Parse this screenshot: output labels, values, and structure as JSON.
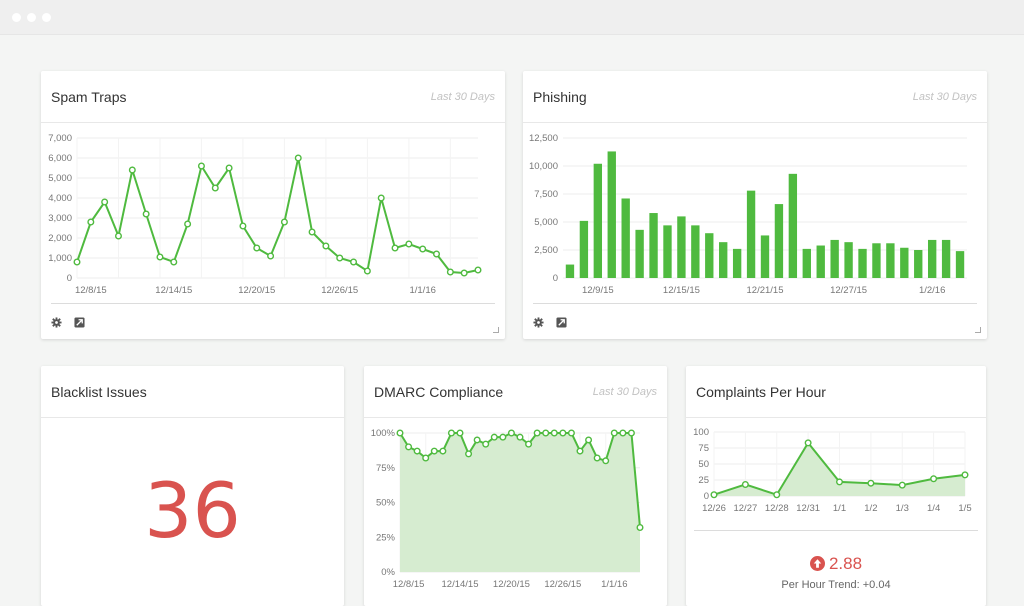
{
  "window": {
    "controls": [
      "close",
      "minimize",
      "maximize"
    ]
  },
  "colors": {
    "accent": "#4fba3f",
    "area": "#d6ecd0",
    "alert": "#d9534f",
    "grid": "#eeeeee",
    "text": "#333333",
    "muted": "#c2c2c2"
  },
  "panels": {
    "spam_traps": {
      "title": "Spam Traps",
      "range": "Last 30 Days",
      "settings_icon": "gear-icon",
      "export_icon": "export-icon"
    },
    "phishing": {
      "title": "Phishing",
      "range": "Last 30 Days",
      "settings_icon": "gear-icon",
      "export_icon": "export-icon"
    },
    "blacklist": {
      "title": "Blacklist Issues",
      "value": "36"
    },
    "dmarc": {
      "title": "DMARC Compliance",
      "range": "Last 30 Days"
    },
    "complaints": {
      "title": "Complaints Per Hour",
      "value": "2.88",
      "trend_icon": "arrow-up-circle-icon",
      "trend_label": "Per Hour Trend: +0.04"
    }
  },
  "chart_data": [
    {
      "id": "spam",
      "type": "line",
      "yticks": [
        "7,000",
        "6,000",
        "5,000",
        "4,000",
        "3,000",
        "2,000",
        "1,000",
        "0"
      ],
      "ylim": [
        0,
        7000
      ],
      "xticks": [
        {
          "i": 1,
          "label": "12/8/15"
        },
        {
          "i": 7,
          "label": "12/14/15"
        },
        {
          "i": 13,
          "label": "12/20/15"
        },
        {
          "i": 19,
          "label": "12/26/15"
        },
        {
          "i": 25,
          "label": "1/1/16"
        }
      ],
      "values": [
        800,
        2800,
        3800,
        2100,
        5400,
        3200,
        1050,
        800,
        2700,
        5600,
        4500,
        5500,
        2600,
        1500,
        1100,
        2800,
        6000,
        2300,
        1600,
        1000,
        800,
        350,
        4000,
        1500,
        1700,
        1450,
        1200,
        300,
        250,
        400
      ],
      "grid": true
    },
    {
      "id": "phishing",
      "type": "bar",
      "yticks": [
        "12,500",
        "10,000",
        "7,500",
        "5,000",
        "2,500",
        "0"
      ],
      "ylim": [
        0,
        12500
      ],
      "xticks": [
        {
          "i": 2,
          "label": "12/9/15"
        },
        {
          "i": 8,
          "label": "12/15/15"
        },
        {
          "i": 14,
          "label": "12/21/15"
        },
        {
          "i": 20,
          "label": "12/27/15"
        },
        {
          "i": 26,
          "label": "1/2/16"
        }
      ],
      "values": [
        1200,
        5100,
        10200,
        11300,
        7100,
        4300,
        5800,
        4700,
        5500,
        4700,
        4000,
        3200,
        2600,
        7800,
        3800,
        6600,
        9300,
        2600,
        2900,
        3400,
        3200,
        2600,
        3100,
        3100,
        2700,
        2500,
        3400,
        3400,
        2400
      ],
      "grid": true
    },
    {
      "id": "dmarc",
      "type": "area",
      "yticks": [
        "100%",
        "75%",
        "50%",
        "25%",
        "0%"
      ],
      "ylim": [
        0,
        100
      ],
      "xticks": [
        {
          "i": 1,
          "label": "12/8/15"
        },
        {
          "i": 7,
          "label": "12/14/15"
        },
        {
          "i": 13,
          "label": "12/20/15"
        },
        {
          "i": 19,
          "label": "12/26/15"
        },
        {
          "i": 25,
          "label": "1/1/16"
        }
      ],
      "values": [
        100,
        90,
        87,
        82,
        87,
        87,
        100,
        100,
        85,
        95,
        92,
        97,
        97,
        100,
        97,
        92,
        100,
        100,
        100,
        100,
        100,
        87,
        95,
        82,
        80,
        100,
        100,
        100,
        32
      ],
      "grid": true
    },
    {
      "id": "complaints",
      "type": "area",
      "yticks": [
        "100",
        "75",
        "50",
        "25",
        "0"
      ],
      "ylim": [
        0,
        100
      ],
      "xticks": [
        {
          "i": 0,
          "label": "12/26"
        },
        {
          "i": 1,
          "label": "12/27"
        },
        {
          "i": 2,
          "label": "12/28"
        },
        {
          "i": 3,
          "label": "12/31"
        },
        {
          "i": 4,
          "label": "1/1"
        },
        {
          "i": 5,
          "label": "1/2"
        },
        {
          "i": 6,
          "label": "1/3"
        },
        {
          "i": 7,
          "label": "1/4"
        },
        {
          "i": 8,
          "label": "1/5"
        }
      ],
      "values": [
        2,
        18,
        2,
        83,
        22,
        20,
        17,
        27,
        33
      ],
      "grid": true
    }
  ]
}
